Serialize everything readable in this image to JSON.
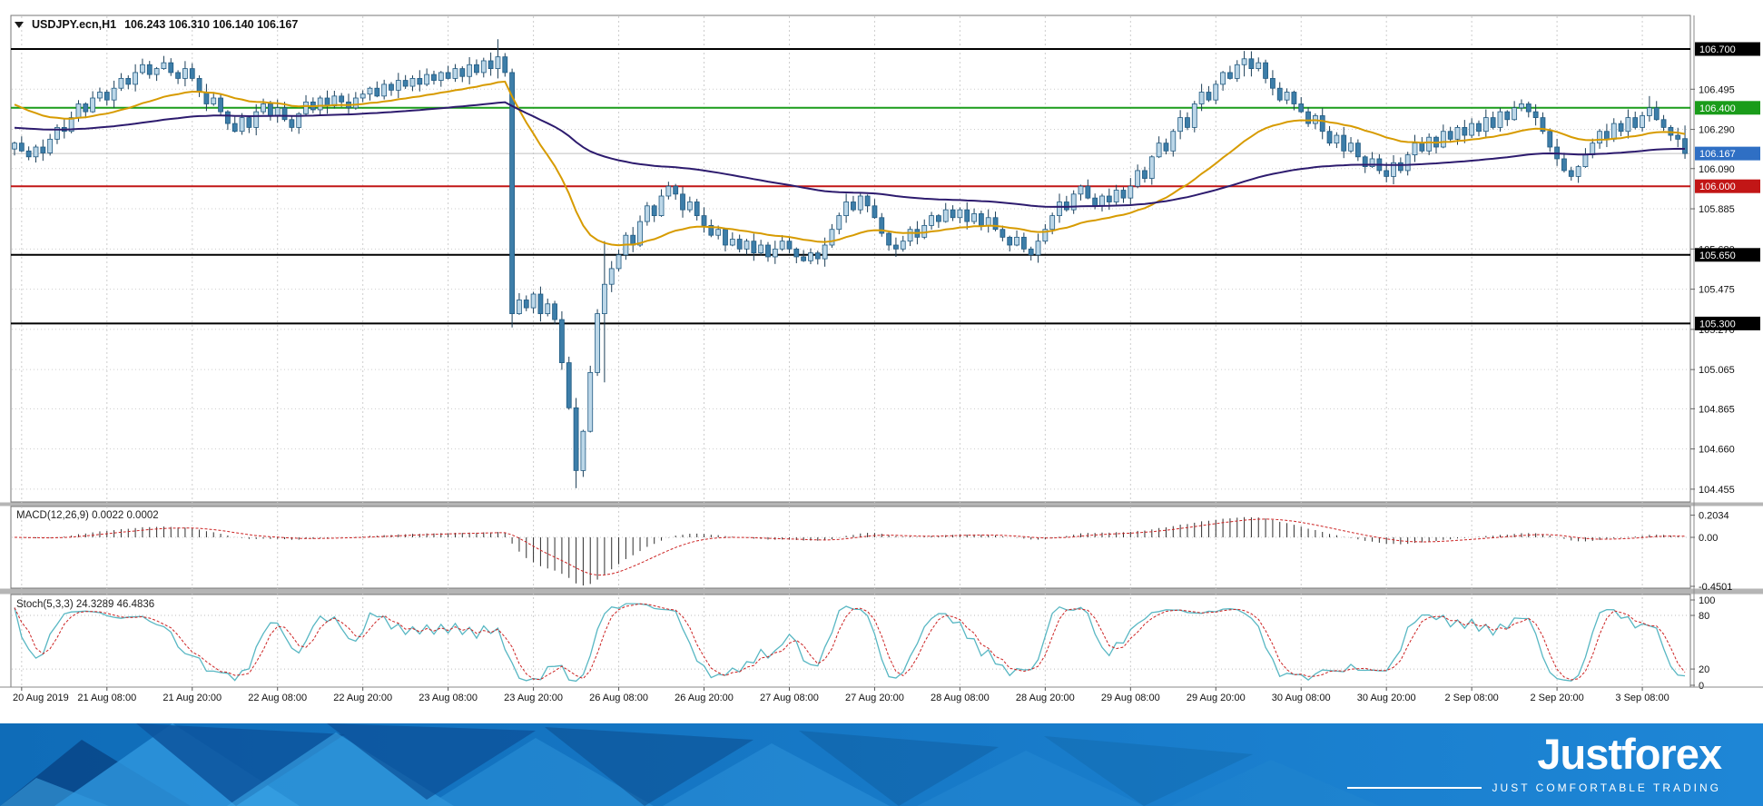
{
  "header": {
    "symbol_timeframe": "USDJPY.ecn,H1",
    "ohlc": "106.243 106.310 106.140 106.167"
  },
  "footer": {
    "brand": "Justforex",
    "tagline": "JUST COMFORTABLE TRADING"
  },
  "colors": {
    "bull": "#bcd7e8",
    "bear": "#3d7ea9",
    "candle_stroke": "#205a82",
    "wick": "#1c3e57",
    "grid": "#cdcdcd",
    "frame": "#777777",
    "divider": "#b5b5b5",
    "axis_text": "#111111",
    "macd_hist": "#2f2f2f",
    "macd_signal": "#cc2222",
    "stoch_k": "#58b7c3",
    "stoch_d": "#cc2222",
    "current_price_badge": "#2f6fc4",
    "footer_blue_left": "#0f6cb8",
    "footer_blue_right": "#1e86d6"
  },
  "chart_data": [
    {
      "type": "candlestick",
      "title": "USDJPY.ecn,H1",
      "symbol": "USDJPY.ecn",
      "timeframe": "H1",
      "current": {
        "open": 106.243,
        "high": 106.31,
        "low": 106.14,
        "close": 106.167
      },
      "ylim": [
        104.38,
        106.87
      ],
      "bars_per_label": 12,
      "x_labels": [
        "20 Aug 2019",
        "21 Aug 08:00",
        "21 Aug 20:00",
        "22 Aug 08:00",
        "22 Aug 20:00",
        "23 Aug 08:00",
        "23 Aug 20:00",
        "26 Aug 08:00",
        "26 Aug 20:00",
        "27 Aug 08:00",
        "27 Aug 20:00",
        "28 Aug 08:00",
        "28 Aug 20:00",
        "29 Aug 08:00",
        "29 Aug 20:00",
        "30 Aug 08:00",
        "30 Aug 20:00",
        "2 Sep 08:00",
        "2 Sep 20:00",
        "3 Sep 08:00"
      ],
      "axis_prices": [
        106.495,
        106.29,
        106.09,
        105.885,
        105.68,
        105.475,
        105.27,
        105.065,
        104.865,
        104.66,
        104.455
      ],
      "levels": [
        {
          "name": "resistance-106700",
          "price": 106.7,
          "color": "#000000",
          "width": 2,
          "badge": "#000000"
        },
        {
          "name": "level-106400",
          "price": 106.4,
          "color": "#1a9c1a",
          "width": 2,
          "badge": "#1a9c1a"
        },
        {
          "name": "current-price-106167",
          "price": 106.167,
          "color": "#c0c0c0",
          "width": 1,
          "badge": "#2f6fc4"
        },
        {
          "name": "level-106000",
          "price": 106.0,
          "color": "#c21616",
          "width": 2,
          "badge": "#c21616"
        },
        {
          "name": "support-105650",
          "price": 105.65,
          "color": "#000000",
          "width": 2,
          "badge": "#000000"
        },
        {
          "name": "support-105300",
          "price": 105.3,
          "color": "#000000",
          "width": 2,
          "badge": "#000000"
        }
      ],
      "moving_averages": [
        {
          "name": "ma-fast-orange",
          "period": 30,
          "seed": 106.43,
          "color": "#d79b00"
        },
        {
          "name": "ma-slow-purple",
          "period": 110,
          "seed": 106.3,
          "color": "#2d1b6e"
        }
      ],
      "closes": [
        106.22,
        106.18,
        106.15,
        106.2,
        106.17,
        106.24,
        106.3,
        106.28,
        106.35,
        106.42,
        106.38,
        106.45,
        106.48,
        106.44,
        106.5,
        106.55,
        106.52,
        106.58,
        106.62,
        106.57,
        106.6,
        106.63,
        106.58,
        106.55,
        106.6,
        106.55,
        106.48,
        106.42,
        106.45,
        106.38,
        106.32,
        106.28,
        106.35,
        106.3,
        106.38,
        106.42,
        106.36,
        106.4,
        106.34,
        106.3,
        106.37,
        106.43,
        106.39,
        106.45,
        106.41,
        106.46,
        106.43,
        106.4,
        106.45,
        106.47,
        106.5,
        106.46,
        106.52,
        106.49,
        106.54,
        106.51,
        106.55,
        106.52,
        106.57,
        106.54,
        106.58,
        106.55,
        106.6,
        106.56,
        106.62,
        106.58,
        106.64,
        106.6,
        106.66,
        106.58,
        105.35,
        105.42,
        105.38,
        105.45,
        105.35,
        105.4,
        105.32,
        105.1,
        104.87,
        104.55,
        104.75,
        105.05,
        105.35,
        105.5,
        105.58,
        105.65,
        105.75,
        105.7,
        105.82,
        105.9,
        105.85,
        105.95,
        106.0,
        105.96,
        105.88,
        105.92,
        105.85,
        105.8,
        105.75,
        105.78,
        105.7,
        105.73,
        105.68,
        105.72,
        105.66,
        105.7,
        105.64,
        105.68,
        105.72,
        105.68,
        105.64,
        105.62,
        105.66,
        105.63,
        105.7,
        105.78,
        105.85,
        105.92,
        105.88,
        105.95,
        105.9,
        105.84,
        105.76,
        105.7,
        105.68,
        105.72,
        105.78,
        105.74,
        105.8,
        105.85,
        105.82,
        105.88,
        105.84,
        105.88,
        105.82,
        105.86,
        105.8,
        105.84,
        105.78,
        105.74,
        105.7,
        105.74,
        105.68,
        105.65,
        105.72,
        105.78,
        105.85,
        105.92,
        105.88,
        105.96,
        106.0,
        105.94,
        105.9,
        105.95,
        105.92,
        105.98,
        105.94,
        106.0,
        106.08,
        106.04,
        106.15,
        106.22,
        106.18,
        106.28,
        106.35,
        106.3,
        106.42,
        106.48,
        106.44,
        106.52,
        106.58,
        106.55,
        106.62,
        106.65,
        106.6,
        106.63,
        106.55,
        106.5,
        106.44,
        106.48,
        106.42,
        106.38,
        106.32,
        106.36,
        106.28,
        106.22,
        106.26,
        106.18,
        106.22,
        106.15,
        106.1,
        106.14,
        106.08,
        106.05,
        106.12,
        106.08,
        106.16,
        106.22,
        106.18,
        106.25,
        106.2,
        106.28,
        106.24,
        106.3,
        106.26,
        106.32,
        106.28,
        106.35,
        106.3,
        106.38,
        106.34,
        106.4,
        106.42,
        106.38,
        106.35,
        106.28,
        106.2,
        106.14,
        106.08,
        106.05,
        106.1,
        106.16,
        106.22,
        106.28,
        106.24,
        106.32,
        106.28,
        106.35,
        106.3,
        106.36,
        106.4,
        106.34,
        106.3,
        106.26,
        106.24,
        106.167
      ],
      "overrides": {
        "68": [
          106.6,
          106.75,
          106.55,
          106.66
        ],
        "70": [
          106.58,
          106.6,
          105.28,
          105.35
        ],
        "79": [
          104.87,
          104.92,
          104.46,
          104.55
        ],
        "83": [
          105.35,
          105.72,
          105.0,
          105.5
        ],
        "173": [
          106.62,
          106.69,
          106.56,
          106.65
        ],
        "193": [
          106.08,
          106.12,
          106.02,
          106.05
        ],
        "230": [
          106.36,
          106.46,
          106.33,
          106.4
        ],
        "235": [
          106.243,
          106.31,
          106.14,
          106.167
        ]
      }
    },
    {
      "type": "macd",
      "label": "MACD(12,26,9) 0.0022 0.0002",
      "params": [
        12,
        26,
        9
      ],
      "current": [
        0.0022,
        0.0002
      ],
      "y_labels": [
        "0.2034",
        "0.00",
        "-0.4501"
      ]
    },
    {
      "type": "stochastic",
      "label": "Stoch(5,3,3) 24.3289 46.4836",
      "params": [
        5,
        3,
        3
      ],
      "current": [
        24.3289,
        46.4836
      ],
      "y_labels": [
        "100",
        "80",
        "20",
        "0"
      ],
      "levels": [
        80,
        20
      ]
    }
  ]
}
